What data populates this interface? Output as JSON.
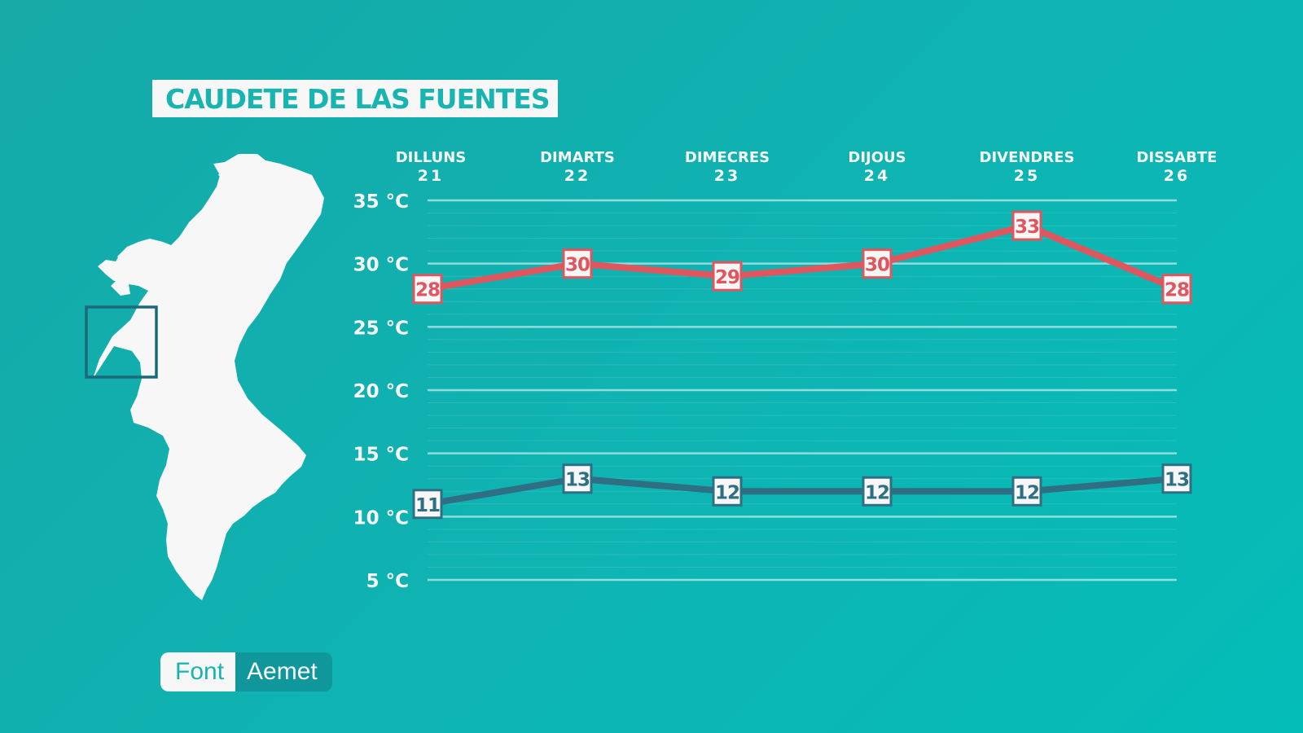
{
  "title": "CAUDETE DE LAS FUENTES",
  "source": {
    "label": "Font",
    "value": "Aemet"
  },
  "map": {
    "icon": "valencia-region-map-icon",
    "highlight": "locator-box"
  },
  "colors": {
    "max_line": "#e0565e",
    "min_line": "#2e6f84",
    "grid": "#ffffff",
    "text": "#f7f7f8"
  },
  "chart_data": {
    "type": "line",
    "categories": [
      {
        "day": "DILLUNS",
        "date": "21"
      },
      {
        "day": "DIMARTS",
        "date": "22"
      },
      {
        "day": "DIMECRES",
        "date": "23"
      },
      {
        "day": "DIJOUS",
        "date": "24"
      },
      {
        "day": "DIVENDRES",
        "date": "25"
      },
      {
        "day": "DISSABTE",
        "date": "26"
      }
    ],
    "series": [
      {
        "values": [
          28,
          30,
          29,
          30,
          33,
          28
        ]
      },
      {
        "values": [
          11,
          13,
          12,
          12,
          12,
          13
        ]
      }
    ],
    "yticks": [
      {
        "value": 35,
        "label": "35 °C"
      },
      {
        "value": 30,
        "label": "30 °C"
      },
      {
        "value": 25,
        "label": "25 °C"
      },
      {
        "value": 20,
        "label": "20 °C"
      },
      {
        "value": 15,
        "label": "15 °C"
      },
      {
        "value": 10,
        "label": "10 °C"
      },
      {
        "value": 5,
        "label": "5 °C"
      }
    ],
    "ylim": [
      5,
      35
    ],
    "grid": true,
    "title": "",
    "xlabel": "",
    "ylabel": ""
  }
}
